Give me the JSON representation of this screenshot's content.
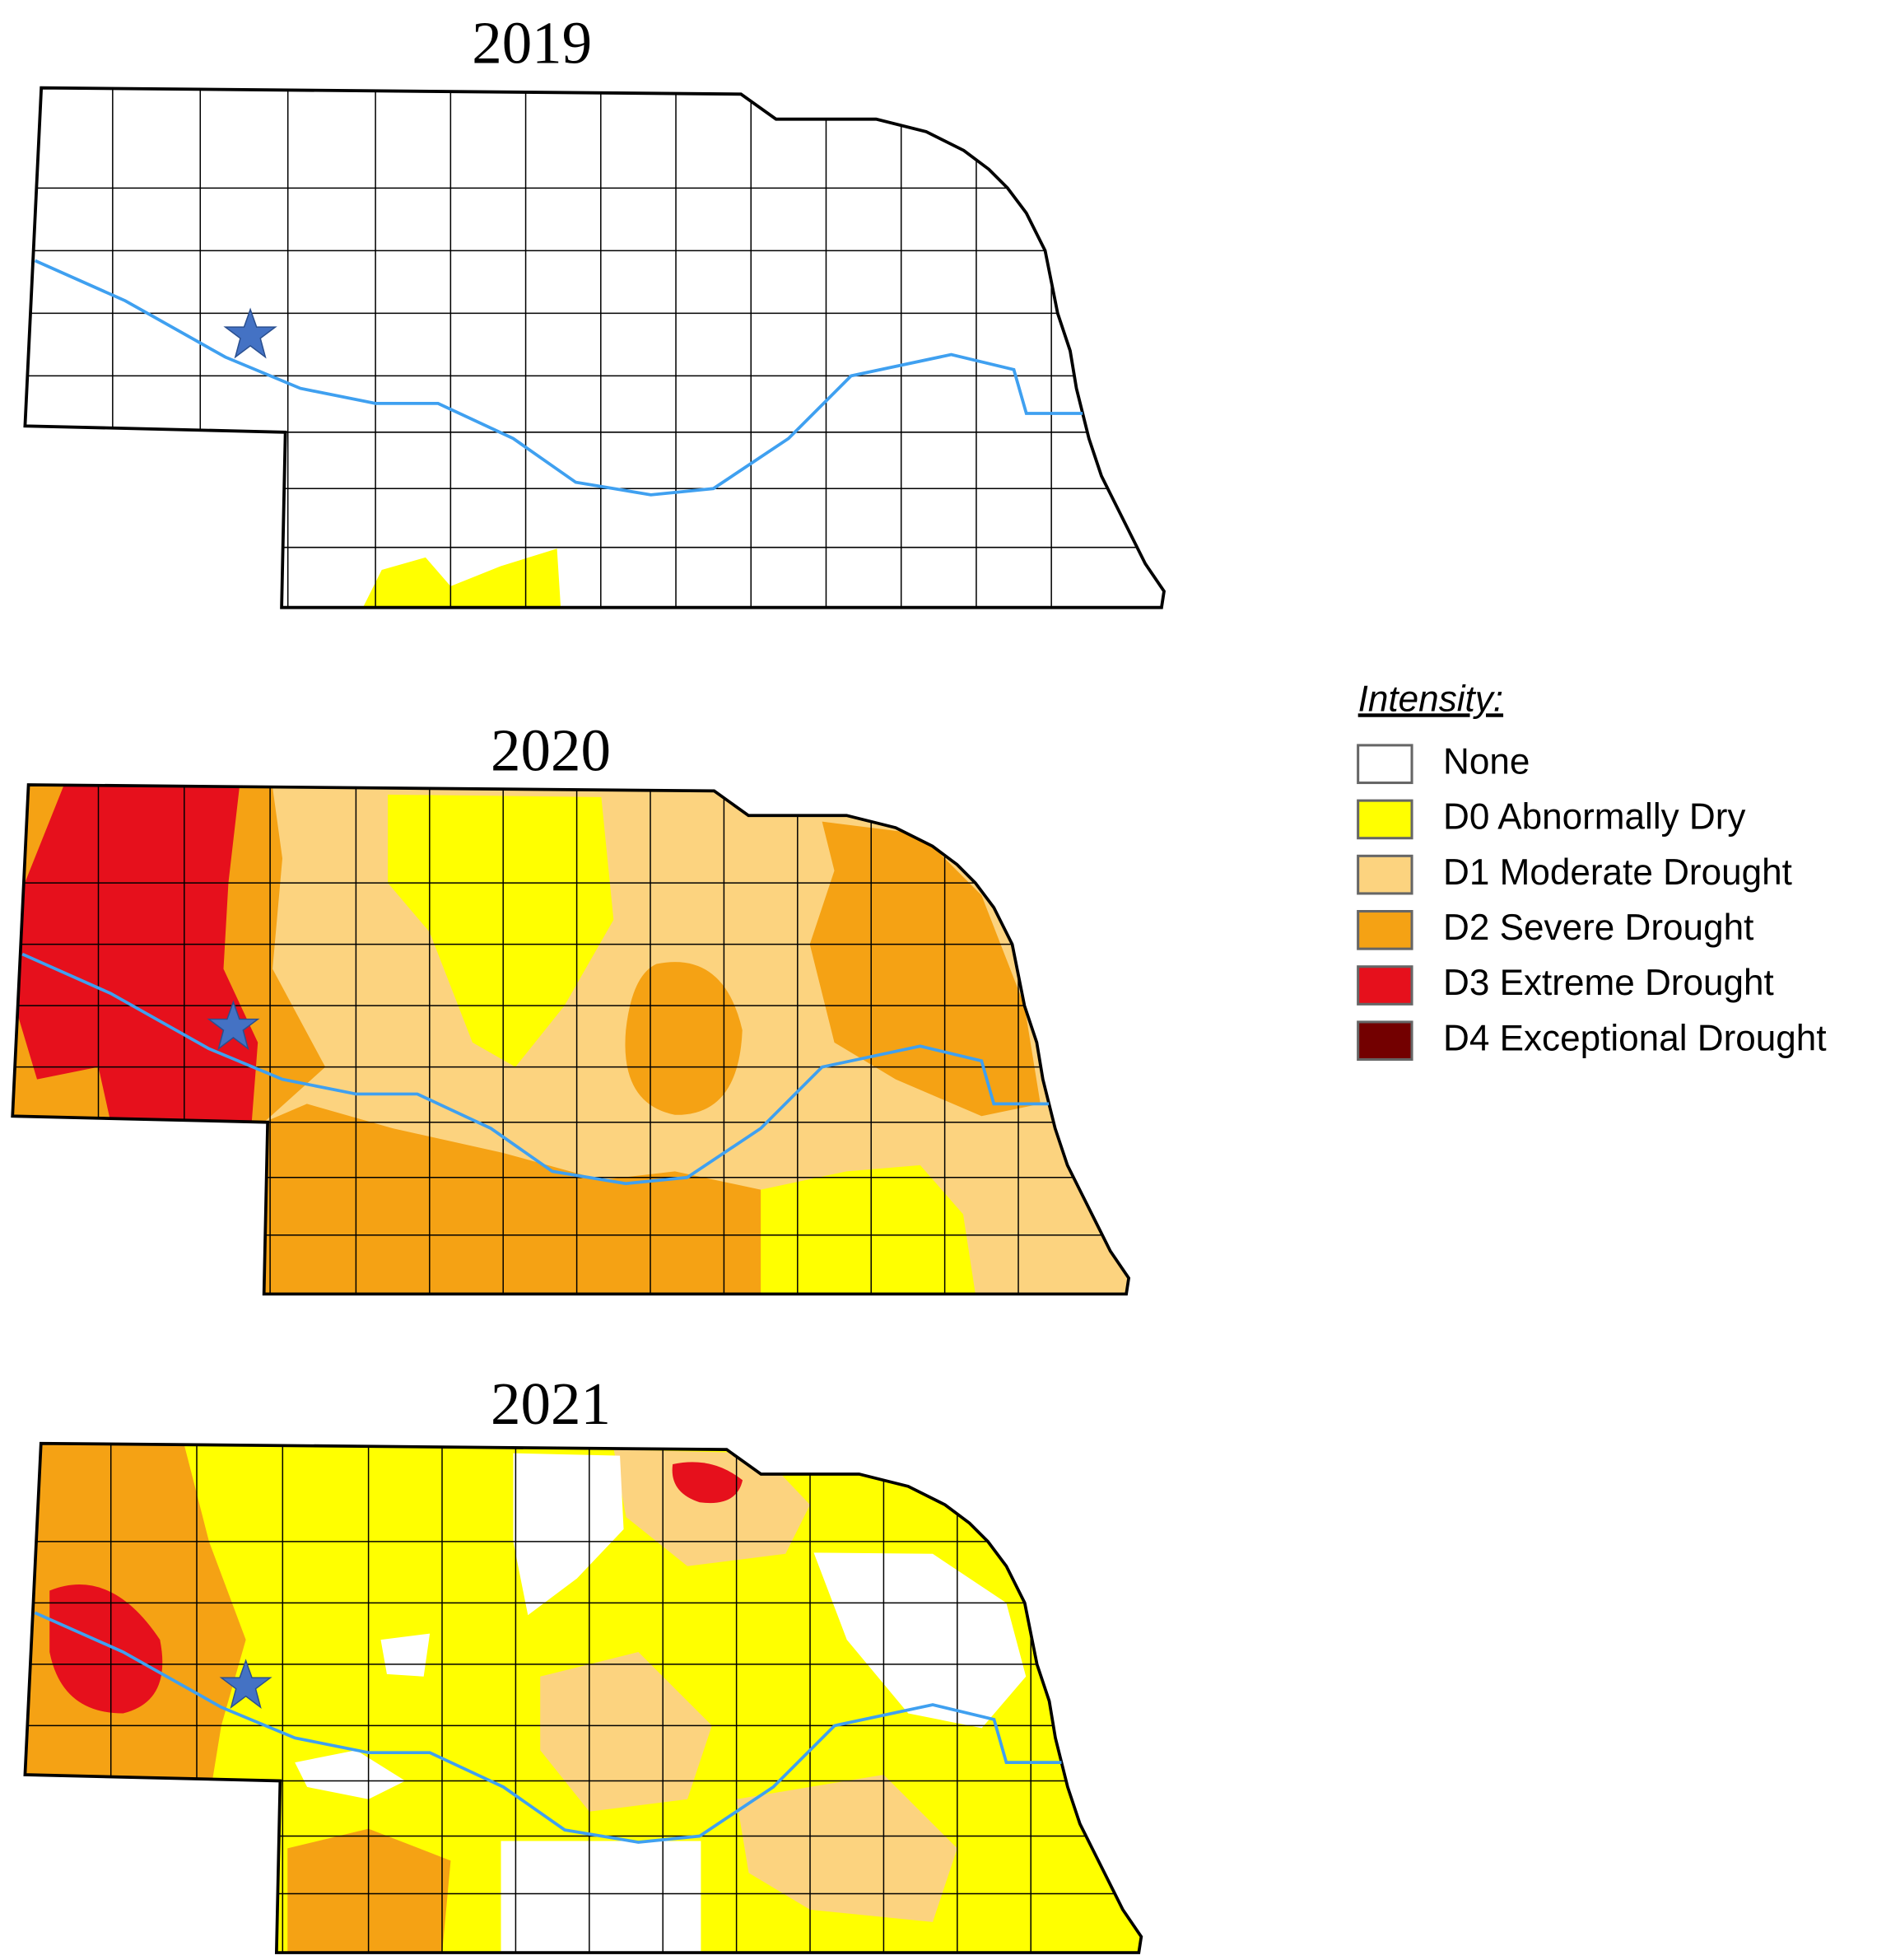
{
  "maps": [
    {
      "title": "2019"
    },
    {
      "title": "2020"
    },
    {
      "title": "2021"
    }
  ],
  "legend": {
    "title": "Intensity:",
    "items": [
      {
        "label": "None",
        "color": "#ffffff"
      },
      {
        "label": "D0 Abnormally Dry",
        "color": "#ffff00"
      },
      {
        "label": "D1 Moderate Drought",
        "color": "#fcd37f"
      },
      {
        "label": "D2 Severe Drought",
        "color": "#f5a214"
      },
      {
        "label": "D3 Extreme Drought",
        "color": "#e6101c"
      },
      {
        "label": "D4 Exceptional Drought",
        "color": "#730000"
      }
    ]
  }
}
